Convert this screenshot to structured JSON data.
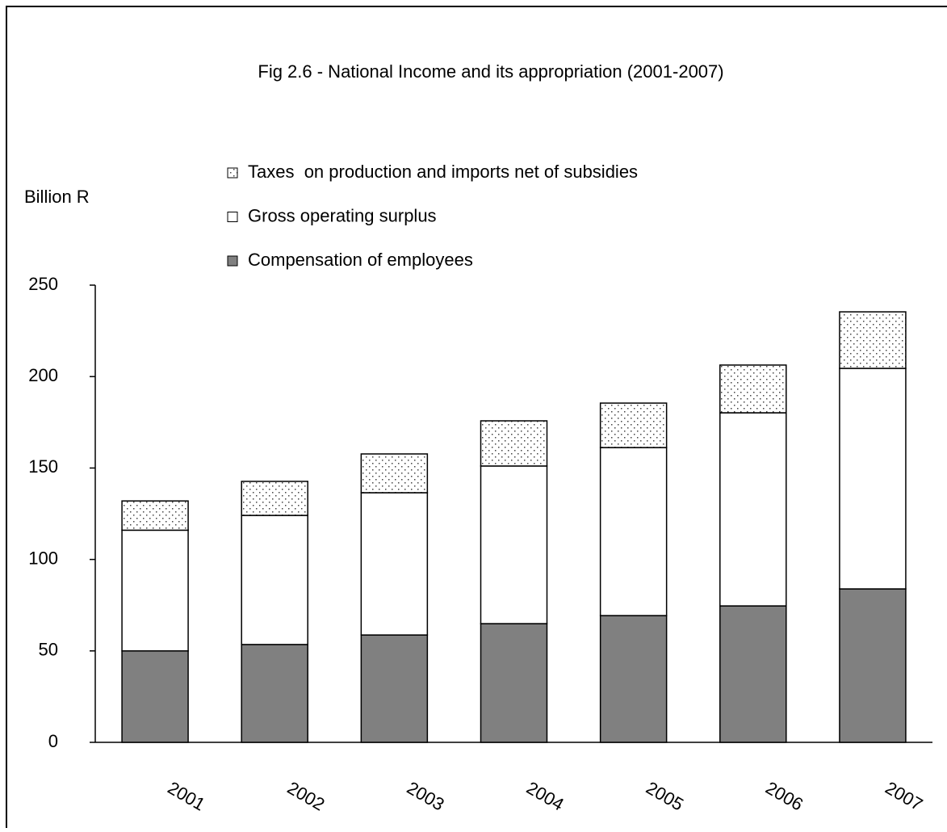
{
  "chart_data": {
    "type": "stacked_bar",
    "title": "Fig 2.6 - National Income and its appropriation (2001-2007)",
    "y_label": "Billion R",
    "categories": [
      "2001",
      "2002",
      "2003",
      "2004",
      "2005",
      "2006",
      "2007"
    ],
    "series": [
      {
        "name": "Compensation of employees",
        "color": "#808080",
        "values": [
          50,
          53.5,
          58.7,
          64.9,
          69.3,
          74.6,
          83.9
        ]
      },
      {
        "name": "Gross operating surplus",
        "color": "#ffffff",
        "values": [
          66,
          70.6,
          77.8,
          86.2,
          91.9,
          105.6,
          120.6
        ]
      },
      {
        "name": "Taxes  on production and imports net of subsidies",
        "color": "#ffffff",
        "pattern": "dots",
        "values": [
          16,
          18.6,
          21.2,
          24.7,
          24.3,
          26.1,
          30.9
        ]
      }
    ],
    "ylim": [
      0,
      250
    ],
    "yticks": [
      0,
      50,
      100,
      150,
      200,
      250
    ],
    "grid": false,
    "legend": "top"
  }
}
